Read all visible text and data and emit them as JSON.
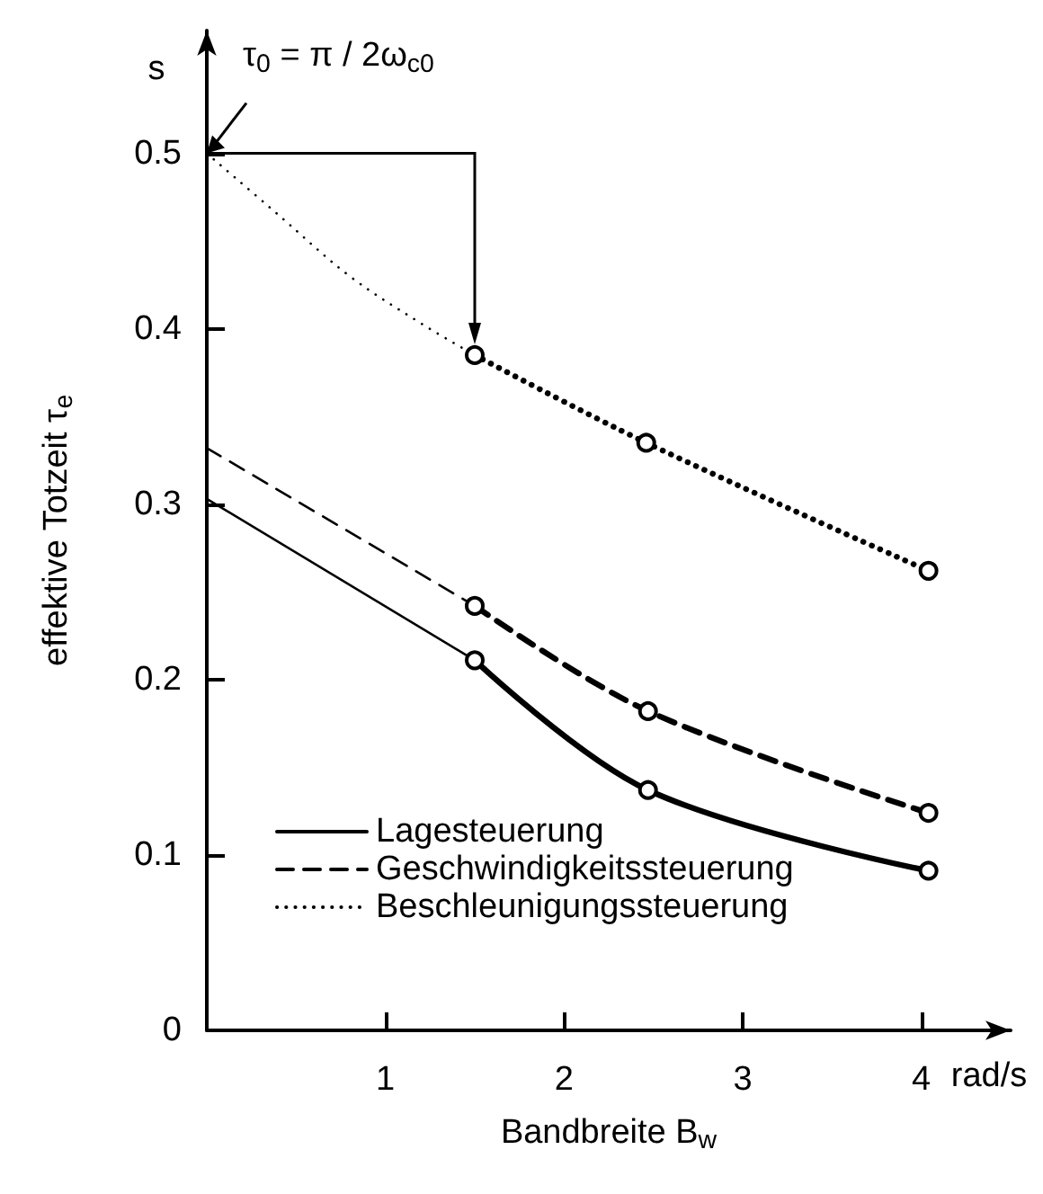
{
  "chart_data": {
    "type": "line",
    "xlabel": "Bandbreite B$_{w}$",
    "ylabel": "effektive Totzeit τ$_{e}$",
    "xlim": [
      0,
      4.5
    ],
    "xticks": [
      1,
      2,
      3,
      4
    ],
    "ylim": [
      0,
      0.57
    ],
    "yticks": [
      0,
      0.1,
      0.2,
      0.3,
      0.4,
      0.5
    ],
    "grid": false,
    "legend": "bottom left",
    "annotations": [
      "s",
      "rad/s",
      {
        "text": "τ$_{0}$ = π / 2ω$_{c0}$",
        "x": 0,
        "y": 0.5
      }
    ],
    "series": [
      {
        "color": "#000000",
        "line_style": "solid",
        "x": [
          0,
          1.5
        ],
        "values": [
          0.303,
          0.211
        ]
      },
      {
        "color": "#000000",
        "line_style": "dashed",
        "x": [
          0,
          1.5
        ],
        "values": [
          0.332,
          0.242
        ]
      },
      {
        "color": "#000000",
        "line_style": "dotted",
        "x": [
          0,
          0.4,
          0.8,
          1.2,
          1.5
        ],
        "values": [
          0.5,
          0.465,
          0.43,
          0.403,
          0.385
        ]
      },
      {
        "name": "Lagesteuerung",
        "color": "#000000",
        "line_style": "solid",
        "marker": "circle",
        "x": [
          1.5,
          2.47,
          4.04
        ],
        "values": [
          0.211,
          0.137,
          0.091
        ]
      },
      {
        "name": "Geschwindigkeitssteuerung",
        "color": "#000000",
        "line_style": "dashed",
        "marker": "circle",
        "x": [
          1.5,
          2.47,
          4.04
        ],
        "values": [
          0.242,
          0.182,
          0.124
        ]
      },
      {
        "name": "Beschleunigungssteuerung",
        "color": "#000000",
        "line_style": "dotted",
        "marker": "circle",
        "x": [
          1.5,
          2.46,
          4.04
        ],
        "values": [
          0.385,
          0.335,
          0.262
        ]
      }
    ]
  }
}
